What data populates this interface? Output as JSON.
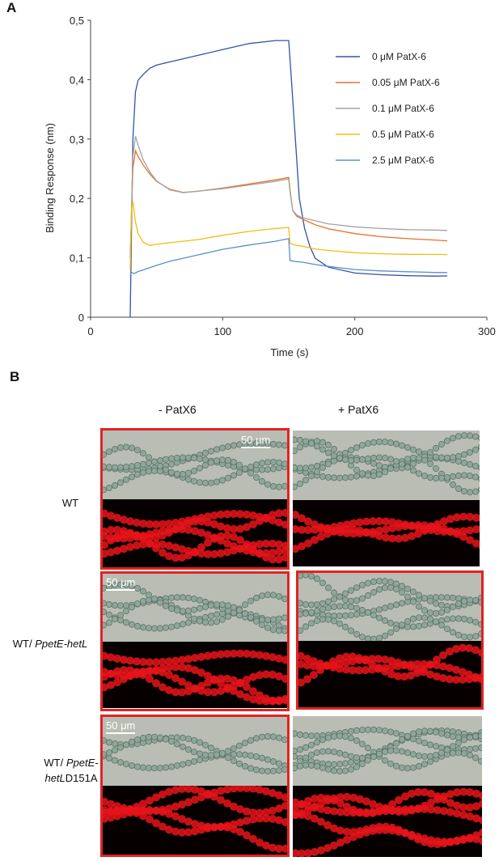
{
  "panel_a": {
    "letter": "A",
    "chart_data": {
      "type": "line",
      "xlabel": "Time (s)",
      "ylabel": "Binding Response (nm)",
      "xlim": [
        0,
        300
      ],
      "ylim": [
        0,
        0.5
      ],
      "x_ticks": [
        "0",
        "100",
        "200",
        "300"
      ],
      "y_ticks": [
        "0",
        "0,1",
        "0,2",
        "0,3",
        "0,4",
        "0,5"
      ],
      "grid": false,
      "legend_position": "top-right",
      "series": [
        {
          "name": "0 μM PatX-6",
          "color": "#2e55a4",
          "x": [
            30,
            32,
            34,
            36,
            40,
            45,
            50,
            60,
            80,
            100,
            120,
            140,
            150,
            152,
            155,
            158,
            162,
            166,
            170,
            180,
            200,
            220,
            240,
            260,
            270
          ],
          "y": [
            0.0,
            0.3,
            0.38,
            0.4,
            0.41,
            0.42,
            0.425,
            0.43,
            0.44,
            0.45,
            0.46,
            0.465,
            0.465,
            0.4,
            0.3,
            0.2,
            0.15,
            0.12,
            0.1,
            0.085,
            0.075,
            0.072,
            0.07,
            0.069,
            0.069
          ]
        },
        {
          "name": "0.05 μM PatX-6",
          "color": "#e8702a",
          "x": [
            30,
            32,
            34,
            36,
            40,
            45,
            50,
            60,
            70,
            80,
            100,
            120,
            140,
            150,
            151,
            153,
            156,
            160,
            170,
            180,
            200,
            220,
            240,
            260,
            270
          ],
          "y": [
            0.1,
            0.25,
            0.28,
            0.27,
            0.255,
            0.24,
            0.228,
            0.215,
            0.21,
            0.212,
            0.218,
            0.225,
            0.232,
            0.236,
            0.215,
            0.18,
            0.17,
            0.165,
            0.155,
            0.148,
            0.14,
            0.135,
            0.132,
            0.13,
            0.129
          ]
        },
        {
          "name": "0.1 μM PatX-6",
          "color": "#a3a3a3",
          "x": [
            30,
            32,
            34,
            36,
            40,
            45,
            50,
            60,
            70,
            80,
            100,
            120,
            140,
            150,
            151,
            153,
            156,
            160,
            170,
            180,
            200,
            220,
            240,
            260,
            270
          ],
          "y": [
            0.1,
            0.27,
            0.305,
            0.29,
            0.265,
            0.245,
            0.23,
            0.215,
            0.21,
            0.212,
            0.216,
            0.222,
            0.228,
            0.232,
            0.21,
            0.18,
            0.172,
            0.168,
            0.163,
            0.158,
            0.153,
            0.15,
            0.148,
            0.147,
            0.146
          ]
        },
        {
          "name": "0.5 μM PatX-6",
          "color": "#f2bd12",
          "x": [
            30,
            31,
            32,
            34,
            36,
            40,
            45,
            50,
            60,
            80,
            100,
            120,
            140,
            150,
            151,
            155,
            160,
            170,
            180,
            200,
            220,
            240,
            260,
            270
          ],
          "y": [
            0.08,
            0.18,
            0.195,
            0.16,
            0.14,
            0.125,
            0.12,
            0.122,
            0.125,
            0.13,
            0.138,
            0.145,
            0.15,
            0.152,
            0.125,
            0.122,
            0.12,
            0.115,
            0.112,
            0.108,
            0.106,
            0.105,
            0.105,
            0.105
          ]
        },
        {
          "name": "2.5 μM PatX-6",
          "color": "#5a8fcf",
          "x": [
            30,
            31,
            33,
            36,
            40,
            50,
            60,
            80,
            100,
            120,
            140,
            150,
            151,
            155,
            160,
            170,
            180,
            200,
            220,
            240,
            260,
            270
          ],
          "y": [
            0.07,
            0.075,
            0.073,
            0.077,
            0.08,
            0.088,
            0.095,
            0.105,
            0.115,
            0.122,
            0.128,
            0.132,
            0.095,
            0.093,
            0.092,
            0.088,
            0.085,
            0.08,
            0.078,
            0.077,
            0.076,
            0.076
          ]
        }
      ]
    }
  },
  "panel_b": {
    "letter": "B",
    "col_minus": "- PatX6",
    "col_plus": "+ PatX6",
    "row_wt": "WT",
    "row_hetl_prefix": "WT/ ",
    "row_hetl_italic": "PpetE-hetL",
    "row_d151_prefix": "WT/ ",
    "row_d151_italic_1": "PpetE-",
    "row_d151_italic_2": "het",
    "row_d151_italic_3": "L",
    "row_d151_suffix": "D151A",
    "scale_label": "50 μm",
    "scale_label_2": "50 μm",
    "scale_label_3": "50 μm",
    "highlight_color": "#e02424"
  }
}
